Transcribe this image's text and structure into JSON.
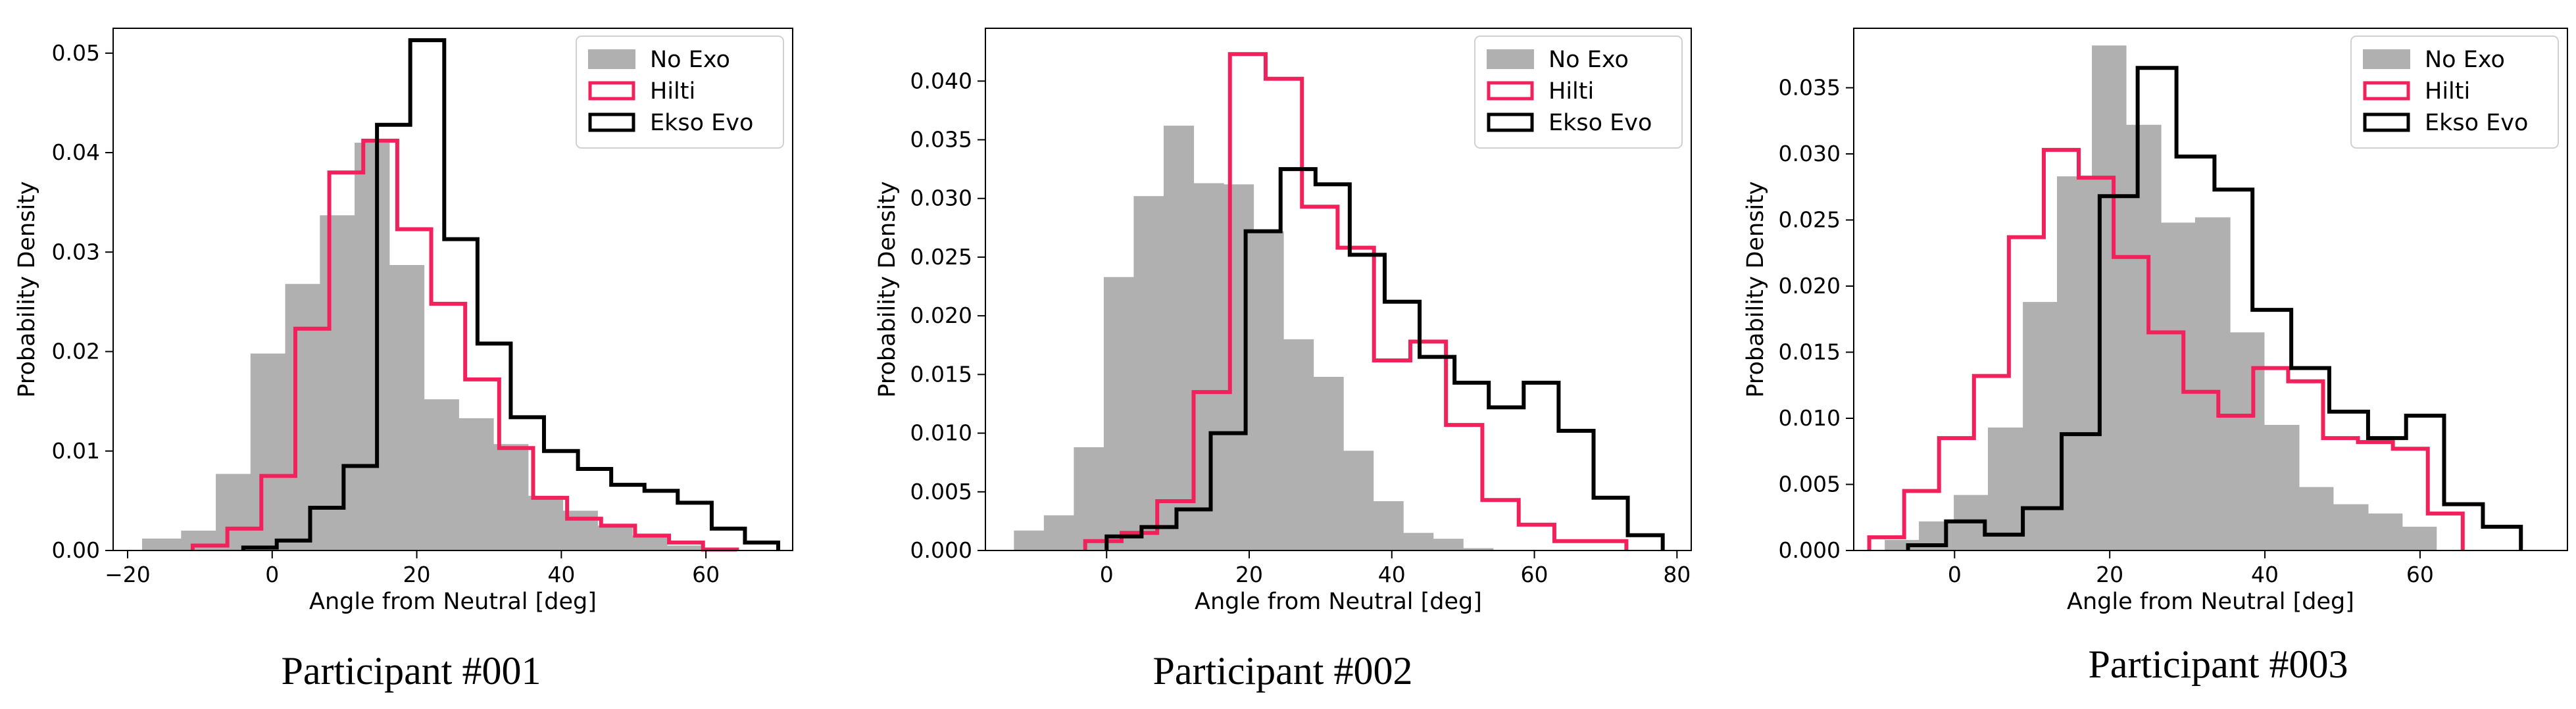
{
  "legend": {
    "no_exo": "No Exo",
    "hilti": "Hilti",
    "ekso": "Ekso Evo"
  },
  "colors": {
    "no_exo": "#b0b0b0",
    "hilti": "#f0215b",
    "ekso": "#000000"
  },
  "chart_data": [
    {
      "type": "histogram",
      "caption": "Participant #001",
      "xlabel": "Angle from Neutral [deg]",
      "ylabel": "Probability Density",
      "xlim": [
        -22,
        72
      ],
      "ylim": [
        0,
        0.0525
      ],
      "xticks": [
        -20,
        0,
        20,
        40,
        60
      ],
      "xtick_labels": [
        "−20",
        "0",
        "20",
        "40",
        "60"
      ],
      "yticks": [
        0,
        0.01,
        0.02,
        0.03,
        0.04,
        0.05
      ],
      "ytick_labels": [
        "0.00",
        "0.01",
        "0.02",
        "0.03",
        "0.04",
        "0.05"
      ],
      "legend_position": "top-right",
      "grid": false,
      "series": [
        {
          "name": "No Exo",
          "style": "filled",
          "bin_edges": [
            -18,
            -12.6,
            -7.8,
            -3,
            1.8,
            6.6,
            11.4,
            16.2,
            21,
            25.8,
            30.6,
            35.4,
            40.2,
            45,
            49.8,
            54.6,
            59.4
          ],
          "values": [
            0.0012,
            0.002,
            0.0077,
            0.0198,
            0.0268,
            0.0337,
            0.041,
            0.0287,
            0.0152,
            0.0133,
            0.0107,
            0.0055,
            0.004,
            0.0025,
            0.0015,
            0.0005
          ]
        },
        {
          "name": "Hilti",
          "style": "step",
          "bin_edges": [
            -11,
            -6.2,
            -1.5,
            3.2,
            7.9,
            12.6,
            17.3,
            22,
            26.7,
            31.4,
            36.1,
            40.8,
            45.5,
            50.2,
            54.9,
            59.6,
            64.3
          ],
          "values": [
            0.0005,
            0.0022,
            0.0075,
            0.0223,
            0.038,
            0.0412,
            0.0323,
            0.0248,
            0.0172,
            0.0103,
            0.0053,
            0.0032,
            0.0025,
            0.0015,
            0.0008,
            0.0001
          ]
        },
        {
          "name": "Ekso Evo",
          "style": "step",
          "bin_edges": [
            -4,
            0.63,
            5.25,
            9.88,
            14.5,
            19.1,
            23.8,
            28.4,
            33,
            37.6,
            42.3,
            46.9,
            51.5,
            56.1,
            60.8,
            65.4,
            70
          ],
          "values": [
            0.0003,
            0.001,
            0.0043,
            0.0085,
            0.0428,
            0.0513,
            0.0313,
            0.0208,
            0.0134,
            0.01,
            0.0082,
            0.0066,
            0.006,
            0.0048,
            0.0022,
            0.0008
          ]
        }
      ]
    },
    {
      "type": "histogram",
      "caption": "Participant #002",
      "xlabel": "Angle from Neutral [deg]",
      "ylabel": "Probability Density",
      "xlim": [
        -17,
        82
      ],
      "ylim": [
        0,
        0.0445
      ],
      "xticks": [
        0,
        20,
        40,
        60,
        80
      ],
      "xtick_labels": [
        "0",
        "20",
        "40",
        "60",
        "80"
      ],
      "yticks": [
        0,
        0.005,
        0.01,
        0.015,
        0.02,
        0.025,
        0.03,
        0.035,
        0.04
      ],
      "ytick_labels": [
        "0.000",
        "0.005",
        "0.010",
        "0.015",
        "0.020",
        "0.025",
        "0.030",
        "0.035",
        "0.040"
      ],
      "legend_position": "top-right",
      "grid": false,
      "series": [
        {
          "name": "No Exo",
          "style": "filled",
          "bin_edges": [
            -13,
            -8.8,
            -4.6,
            -0.4,
            3.8,
            8,
            12.2,
            16.4,
            20.6,
            24.8,
            29,
            33.2,
            37.4,
            41.6,
            45.8,
            50,
            54.2
          ],
          "values": [
            0.0017,
            0.003,
            0.0088,
            0.0233,
            0.0302,
            0.0362,
            0.0313,
            0.0312,
            0.0272,
            0.018,
            0.0148,
            0.0085,
            0.0042,
            0.0015,
            0.001,
            0.0002
          ]
        },
        {
          "name": "Hilti",
          "style": "step",
          "bin_edges": [
            -3,
            2.1,
            7.1,
            12.2,
            17.3,
            22.3,
            27.4,
            32.4,
            37.5,
            42.6,
            47.6,
            52.7,
            57.8,
            62.8,
            67.9,
            72.9
          ],
          "values": [
            0.0008,
            0.0015,
            0.0042,
            0.0135,
            0.0423,
            0.0402,
            0.0293,
            0.0258,
            0.0162,
            0.0178,
            0.0107,
            0.0043,
            0.0022,
            0.0008,
            0.0008
          ]
        },
        {
          "name": "Ekso Evo",
          "style": "step",
          "bin_edges": [
            0,
            4.9,
            9.8,
            14.6,
            19.5,
            24.4,
            29.3,
            34.1,
            39,
            43.9,
            48.8,
            53.6,
            58.5,
            63.4,
            68.3,
            73.1,
            78
          ],
          "values": [
            0.0012,
            0.002,
            0.0035,
            0.01,
            0.0272,
            0.0325,
            0.0312,
            0.0252,
            0.0212,
            0.0165,
            0.0143,
            0.0122,
            0.0143,
            0.0102,
            0.0045,
            0.0013
          ]
        }
      ]
    },
    {
      "type": "histogram",
      "caption": "Participant #003",
      "xlabel": "Angle from Neutral [deg]",
      "ylabel": "Probability Density",
      "xlim": [
        -13,
        79
      ],
      "ylim": [
        0,
        0.0395
      ],
      "xticks": [
        0,
        20,
        40,
        60
      ],
      "xtick_labels": [
        "0",
        "20",
        "40",
        "60"
      ],
      "yticks": [
        0,
        0.005,
        0.01,
        0.015,
        0.02,
        0.025,
        0.03,
        0.035
      ],
      "ytick_labels": [
        "0.000",
        "0.005",
        "0.010",
        "0.015",
        "0.020",
        "0.025",
        "0.030",
        "0.035"
      ],
      "legend_position": "top-right",
      "grid": false,
      "series": [
        {
          "name": "No Exo",
          "style": "filled",
          "bin_edges": [
            -9,
            -4.6,
            -0.1,
            4.3,
            8.8,
            13.2,
            17.7,
            22.1,
            26.6,
            31,
            35.5,
            39.9,
            44.4,
            48.8,
            53.3,
            57.7,
            62.1
          ],
          "values": [
            0.0008,
            0.0022,
            0.0042,
            0.0093,
            0.0188,
            0.0283,
            0.0382,
            0.0322,
            0.0248,
            0.0252,
            0.0165,
            0.0095,
            0.0048,
            0.0035,
            0.0028,
            0.0018
          ]
        },
        {
          "name": "Hilti",
          "style": "step",
          "bin_edges": [
            -11,
            -6.5,
            -2,
            2.5,
            7,
            11.5,
            16,
            20.5,
            25,
            29.5,
            34,
            38.5,
            43,
            47.5,
            52,
            56.5,
            61,
            65.5
          ],
          "values": [
            0.001,
            0.0045,
            0.0085,
            0.0132,
            0.0237,
            0.0303,
            0.0282,
            0.0222,
            0.0165,
            0.012,
            0.0102,
            0.0138,
            0.0128,
            0.0085,
            0.0082,
            0.0077,
            0.0028
          ]
        },
        {
          "name": "Ekso Evo",
          "style": "step",
          "bin_edges": [
            -6,
            -1.1,
            3.9,
            8.8,
            13.8,
            18.7,
            23.6,
            28.6,
            33.5,
            38.4,
            43.4,
            48.3,
            53.3,
            58.2,
            63.1,
            68.1,
            73
          ],
          "values": [
            0.0004,
            0.0022,
            0.0012,
            0.0032,
            0.0088,
            0.0268,
            0.0365,
            0.0298,
            0.0273,
            0.0182,
            0.0138,
            0.0105,
            0.0085,
            0.0102,
            0.0035,
            0.0018
          ]
        }
      ]
    }
  ]
}
